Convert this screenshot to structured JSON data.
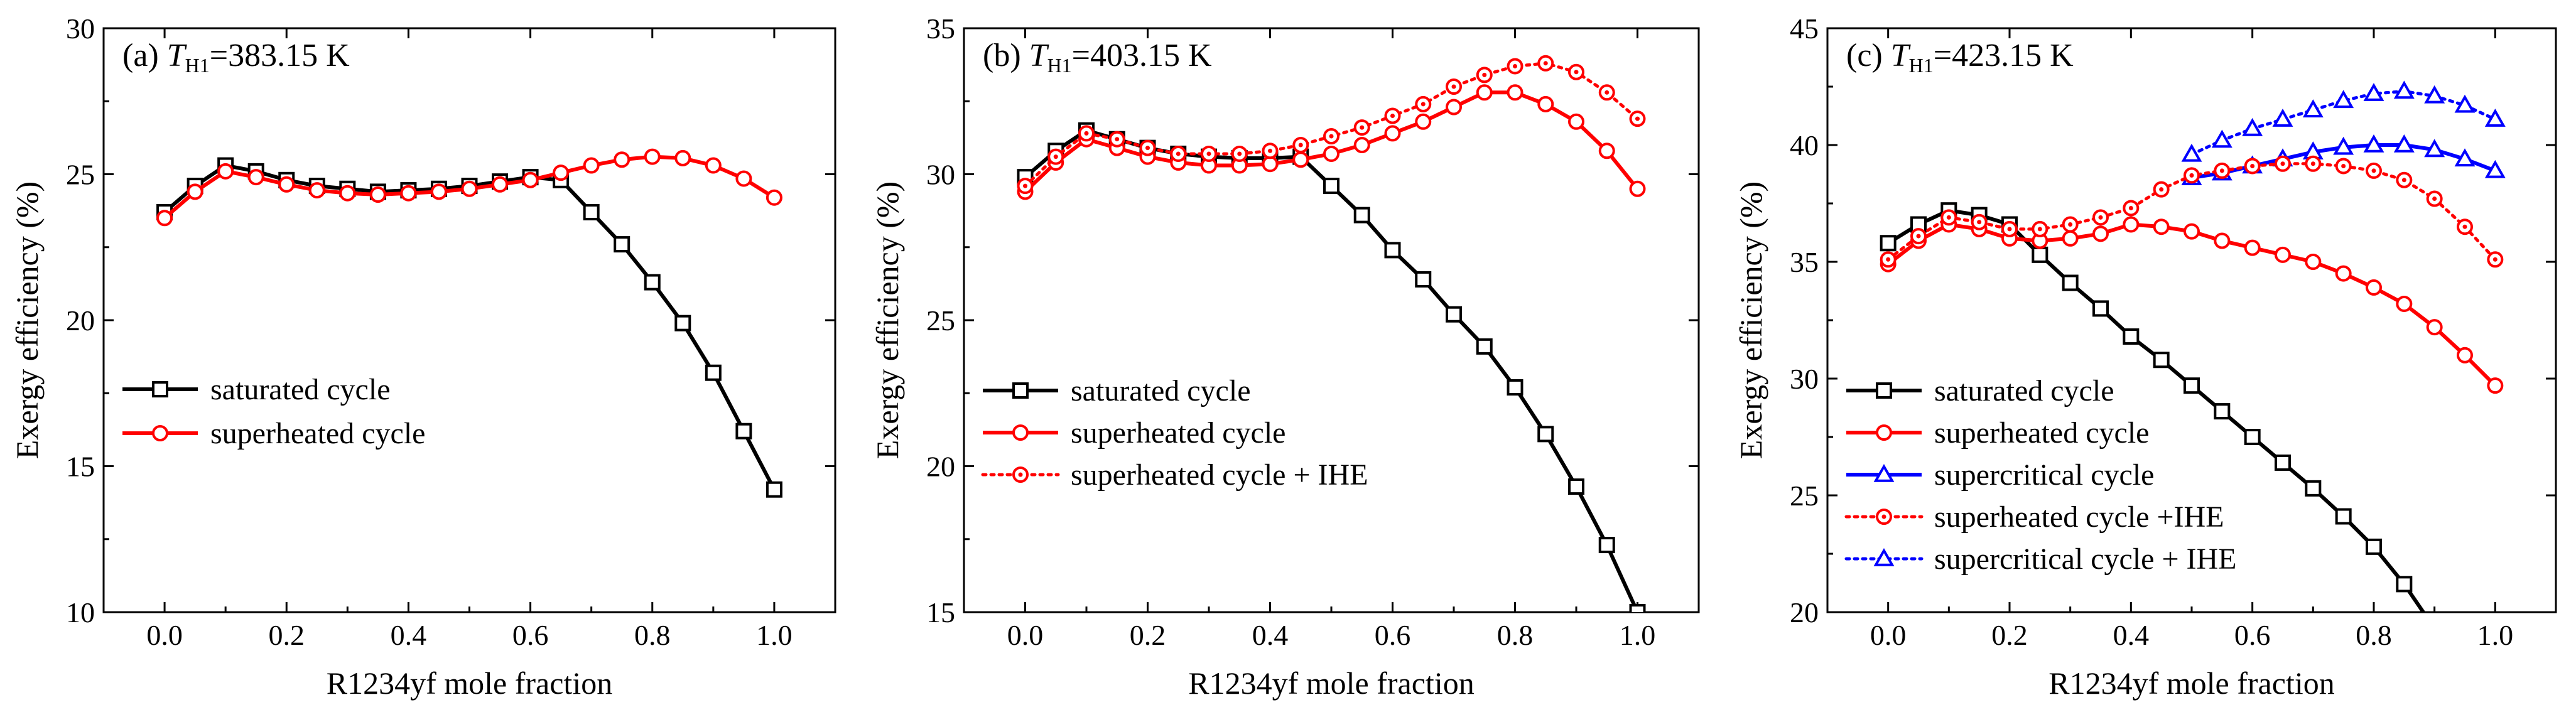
{
  "chart_data": [
    {
      "type": "line",
      "title_prefix": "(a) ",
      "title_var": "T",
      "title_sub": "H1",
      "title_value": "=383.15 K",
      "xlabel": "R1234yf mole fraction",
      "ylabel": "Exergy efficiency (%)",
      "xlim": [
        -0.1,
        1.1
      ],
      "ylim": [
        10,
        30
      ],
      "xticks": [
        0.0,
        0.2,
        0.4,
        0.6,
        0.8,
        1.0
      ],
      "xtick_labels": [
        "0.0",
        "0.2",
        "0.4",
        "0.6",
        "0.8",
        "1.0"
      ],
      "yticks": [
        10,
        15,
        20,
        25,
        30
      ],
      "ytick_labels": [
        "10",
        "15",
        "20",
        "25",
        "30"
      ],
      "grid": false,
      "legend_position": "center-left",
      "series": [
        {
          "name": "saturated cycle",
          "color": "#000000",
          "dash": "solid",
          "marker": "square",
          "x": [
            0.0,
            0.05,
            0.1,
            0.15,
            0.2,
            0.25,
            0.3,
            0.35,
            0.4,
            0.45,
            0.5,
            0.55,
            0.6,
            0.65,
            0.7,
            0.75,
            0.8,
            0.85,
            0.9,
            0.95,
            1.0
          ],
          "y": [
            23.7,
            24.6,
            25.3,
            25.1,
            24.8,
            24.6,
            24.5,
            24.4,
            24.45,
            24.5,
            24.6,
            24.75,
            24.9,
            24.8,
            23.7,
            22.6,
            21.3,
            19.9,
            18.2,
            16.2,
            14.2
          ]
        },
        {
          "name": "superheated cycle",
          "color": "#ff0000",
          "dash": "solid",
          "marker": "circle",
          "x": [
            0.0,
            0.05,
            0.1,
            0.15,
            0.2,
            0.25,
            0.3,
            0.35,
            0.4,
            0.45,
            0.5,
            0.55,
            0.6,
            0.65,
            0.7,
            0.75,
            0.8,
            0.85,
            0.9,
            0.95,
            1.0
          ],
          "y": [
            23.5,
            24.4,
            25.1,
            24.9,
            24.65,
            24.45,
            24.35,
            24.3,
            24.35,
            24.4,
            24.5,
            24.65,
            24.8,
            25.05,
            25.3,
            25.5,
            25.6,
            25.55,
            25.3,
            24.85,
            24.2
          ]
        }
      ]
    },
    {
      "type": "line",
      "title_prefix": "(b) ",
      "title_var": "T",
      "title_sub": "H1",
      "title_value": "=403.15 K",
      "xlabel": "R1234yf mole fraction",
      "ylabel": "Exergy efficiency (%)",
      "xlim": [
        -0.1,
        1.1
      ],
      "ylim": [
        15,
        35
      ],
      "xticks": [
        0.0,
        0.2,
        0.4,
        0.6,
        0.8,
        1.0
      ],
      "xtick_labels": [
        "0.0",
        "0.2",
        "0.4",
        "0.6",
        "0.8",
        "1.0"
      ],
      "yticks": [
        15,
        20,
        25,
        30,
        35
      ],
      "ytick_labels": [
        "15",
        "20",
        "25",
        "30",
        "35"
      ],
      "grid": false,
      "legend_position": "bottom-left",
      "series": [
        {
          "name": "saturated cycle",
          "color": "#000000",
          "dash": "solid",
          "marker": "square",
          "x": [
            0.0,
            0.05,
            0.1,
            0.15,
            0.2,
            0.25,
            0.3,
            0.35,
            0.4,
            0.45,
            0.5,
            0.55,
            0.6,
            0.65,
            0.7,
            0.75,
            0.8,
            0.85,
            0.9,
            0.95,
            1.0
          ],
          "y": [
            29.9,
            30.8,
            31.5,
            31.2,
            30.9,
            30.7,
            30.6,
            30.55,
            30.55,
            30.6,
            29.6,
            28.6,
            27.4,
            26.4,
            25.2,
            24.1,
            22.7,
            21.1,
            19.3,
            17.3,
            15.0
          ]
        },
        {
          "name": "superheated cycle",
          "color": "#ff0000",
          "dash": "solid",
          "marker": "circle",
          "x": [
            0.0,
            0.05,
            0.1,
            0.15,
            0.2,
            0.25,
            0.3,
            0.35,
            0.4,
            0.45,
            0.5,
            0.55,
            0.6,
            0.65,
            0.7,
            0.75,
            0.8,
            0.85,
            0.9,
            0.95,
            1.0
          ],
          "y": [
            29.4,
            30.4,
            31.2,
            30.9,
            30.6,
            30.4,
            30.3,
            30.3,
            30.35,
            30.5,
            30.7,
            31.0,
            31.4,
            31.8,
            32.3,
            32.8,
            32.8,
            32.4,
            31.8,
            30.8,
            29.5
          ]
        },
        {
          "name": "superheated cycle + IHE",
          "color": "#ff0000",
          "dash": "dotted",
          "marker": "circle-dot",
          "x": [
            0.0,
            0.05,
            0.1,
            0.15,
            0.2,
            0.25,
            0.3,
            0.35,
            0.4,
            0.45,
            0.5,
            0.55,
            0.6,
            0.65,
            0.7,
            0.75,
            0.8,
            0.85,
            0.9,
            0.95,
            1.0
          ],
          "y": [
            29.6,
            30.6,
            31.4,
            31.2,
            30.9,
            30.7,
            30.7,
            30.7,
            30.8,
            31.0,
            31.3,
            31.6,
            32.0,
            32.4,
            33.0,
            33.4,
            33.7,
            33.8,
            33.5,
            32.8,
            31.9
          ]
        }
      ]
    },
    {
      "type": "line",
      "title_prefix": "(c) ",
      "title_var": "T",
      "title_sub": "H1",
      "title_value": "=423.15 K",
      "xlabel": "R1234yf mole fraction",
      "ylabel": "Exergy efficiency (%)",
      "xlim": [
        -0.1,
        1.1
      ],
      "ylim": [
        20,
        45
      ],
      "xticks": [
        0.0,
        0.2,
        0.4,
        0.6,
        0.8,
        1.0
      ],
      "xtick_labels": [
        "0.0",
        "0.2",
        "0.4",
        "0.6",
        "0.8",
        "1.0"
      ],
      "yticks": [
        20,
        25,
        30,
        35,
        40,
        45
      ],
      "ytick_labels": [
        "20",
        "25",
        "30",
        "35",
        "40",
        "45"
      ],
      "grid": false,
      "legend_position": "bottom-left",
      "series": [
        {
          "name": "saturated cycle",
          "color": "#000000",
          "dash": "solid",
          "marker": "square",
          "x": [
            0.0,
            0.05,
            0.1,
            0.15,
            0.2,
            0.25,
            0.3,
            0.35,
            0.4,
            0.45,
            0.5,
            0.55,
            0.6,
            0.65,
            0.7,
            0.75,
            0.8,
            0.85,
            0.9
          ],
          "y": [
            35.8,
            36.6,
            37.2,
            37.0,
            36.6,
            35.3,
            34.1,
            33.0,
            31.8,
            30.8,
            29.7,
            28.6,
            27.5,
            26.4,
            25.3,
            24.1,
            22.8,
            21.2,
            19.3
          ]
        },
        {
          "name": "superheated cycle",
          "color": "#ff0000",
          "dash": "solid",
          "marker": "circle",
          "x": [
            0.0,
            0.05,
            0.1,
            0.15,
            0.2,
            0.25,
            0.3,
            0.35,
            0.4,
            0.45,
            0.5,
            0.55,
            0.6,
            0.65,
            0.7,
            0.75,
            0.8,
            0.85,
            0.9,
            0.95,
            1.0
          ],
          "y": [
            34.9,
            35.9,
            36.6,
            36.4,
            36.0,
            35.9,
            36.0,
            36.2,
            36.6,
            36.5,
            36.3,
            35.9,
            35.6,
            35.3,
            35.0,
            34.5,
            33.9,
            33.2,
            32.2,
            31.0,
            29.7
          ]
        },
        {
          "name": "supercritical cycle",
          "color": "#0000ff",
          "dash": "solid",
          "marker": "triangle",
          "x": [
            0.5,
            0.55,
            0.6,
            0.65,
            0.7,
            0.75,
            0.8,
            0.85,
            0.9,
            0.95,
            1.0
          ],
          "y": [
            38.6,
            38.8,
            39.1,
            39.4,
            39.7,
            39.9,
            40.0,
            40.0,
            39.8,
            39.4,
            38.9
          ]
        },
        {
          "name": "superheated cycle +IHE",
          "color": "#ff0000",
          "dash": "dotted",
          "marker": "circle-dot",
          "x": [
            0.0,
            0.05,
            0.1,
            0.15,
            0.2,
            0.25,
            0.3,
            0.35,
            0.4,
            0.45,
            0.5,
            0.55,
            0.6,
            0.65,
            0.7,
            0.75,
            0.8,
            0.85,
            0.9,
            0.95,
            1.0
          ],
          "y": [
            35.1,
            36.1,
            36.9,
            36.7,
            36.4,
            36.4,
            36.6,
            36.9,
            37.3,
            38.1,
            38.7,
            38.9,
            39.1,
            39.2,
            39.2,
            39.1,
            38.9,
            38.5,
            37.7,
            36.5,
            35.1
          ]
        },
        {
          "name": "supercritical cycle + IHE",
          "color": "#0000ff",
          "dash": "dotted",
          "marker": "triangle",
          "x": [
            0.5,
            0.55,
            0.6,
            0.65,
            0.7,
            0.75,
            0.8,
            0.85,
            0.9,
            0.95,
            1.0
          ],
          "y": [
            39.6,
            40.2,
            40.7,
            41.1,
            41.5,
            41.9,
            42.2,
            42.3,
            42.1,
            41.7,
            41.1
          ]
        }
      ]
    }
  ]
}
